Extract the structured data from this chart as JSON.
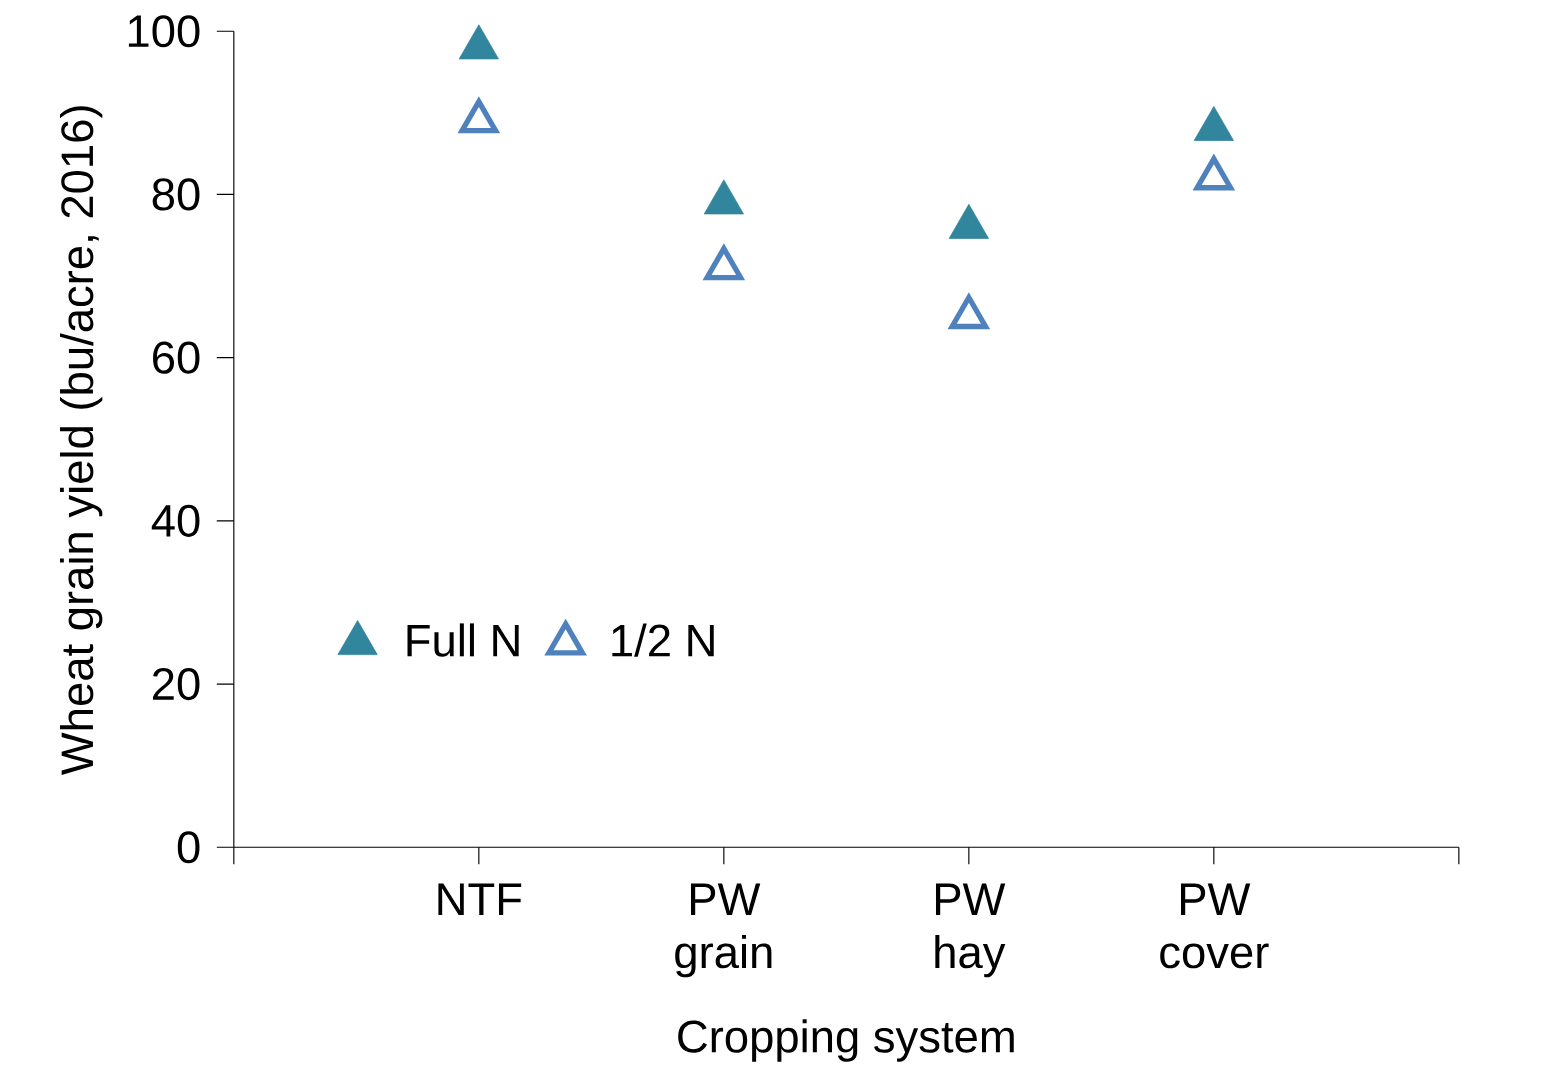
{
  "chart_data": {
    "type": "scatter",
    "xlabel": "Cropping system",
    "ylabel": "Wheat grain yield (bu/acre, 2016)",
    "categories": [
      "NTF",
      "PW grain",
      "PW hay",
      "PW cover"
    ],
    "series": [
      {
        "name": "Full N",
        "color": "#31859c",
        "values": [
          98,
          79,
          76,
          88
        ]
      },
      {
        "name": "1/2 N",
        "color": "#4f81bd",
        "values": [
          89,
          71,
          65,
          82
        ]
      }
    ],
    "ylim": [
      0,
      100
    ],
    "yticks": [
      0,
      20,
      40,
      60,
      80,
      100
    ],
    "grid": false,
    "legend": "bottom left",
    "marker": "triangle"
  }
}
